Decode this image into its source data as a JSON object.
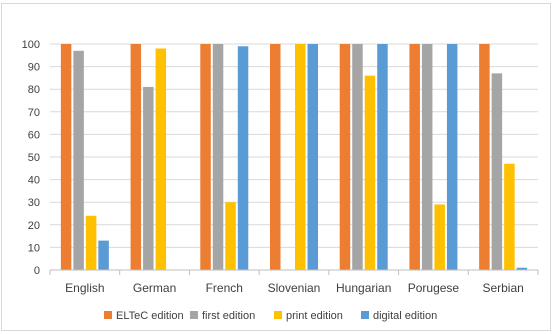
{
  "chart_data": {
    "type": "bar",
    "title": "",
    "xlabel": "",
    "ylabel": "",
    "ylim": [
      0,
      100
    ],
    "yticks": [
      0,
      10,
      20,
      30,
      40,
      50,
      60,
      70,
      80,
      90,
      100
    ],
    "grid": true,
    "legend_position": "bottom",
    "categories": [
      "English",
      "German",
      "French",
      "Slovenian",
      "Hungarian",
      "Porugese",
      "Serbian"
    ],
    "series": [
      {
        "name": "ELTeC edition",
        "color": "#ed7d31",
        "values": [
          100,
          100,
          100,
          100,
          100,
          100,
          100
        ]
      },
      {
        "name": "first edition",
        "color": "#a5a5a5",
        "values": [
          97,
          81,
          100,
          0,
          100,
          100,
          87
        ]
      },
      {
        "name": "print edition",
        "color": "#ffc000",
        "values": [
          24,
          98,
          30,
          100,
          86,
          29,
          47
        ]
      },
      {
        "name": "digital edition",
        "color": "#5b9bd5",
        "values": [
          13,
          0,
          99,
          100,
          100,
          100,
          1
        ]
      }
    ]
  }
}
